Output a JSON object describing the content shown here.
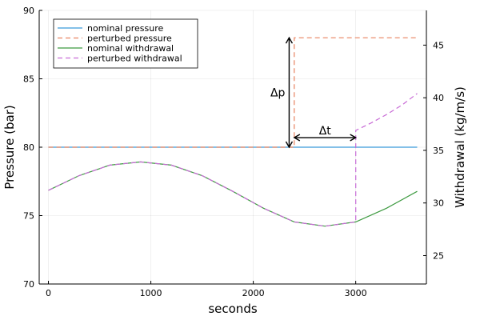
{
  "chart_data": {
    "type": "line",
    "title": "",
    "xlabel": "seconds",
    "ylabel_left": "Pressure (bar)",
    "ylabel_right": "Withdrawal (kg/m/s)",
    "xlim": [
      -90,
      3690
    ],
    "ylim_left": [
      70,
      90
    ],
    "ylim_right": [
      22.3,
      48.3
    ],
    "x_ticks": [
      0,
      1000,
      2000,
      3000
    ],
    "x_tick_labels": [
      "0",
      "1000",
      "2000",
      "3000"
    ],
    "y_left_ticks": [
      70,
      75,
      80,
      85,
      90
    ],
    "y_left_tick_labels": [
      "70",
      "75",
      "80",
      "85",
      "90"
    ],
    "y_right_ticks": [
      25,
      30,
      35,
      40,
      45
    ],
    "y_right_tick_labels": [
      "25",
      "30",
      "35",
      "40",
      "45"
    ],
    "grid": true,
    "legend_position": "top-left",
    "series": [
      {
        "name": "nominal pressure",
        "axis": "left",
        "color": "#3a9bd9",
        "dash": "solid",
        "x": [
          0,
          3600
        ],
        "y": [
          80,
          80
        ]
      },
      {
        "name": "perturbed pressure",
        "axis": "left",
        "color": "#e8825f",
        "dash": "dashed",
        "x": [
          0,
          2400,
          2400,
          3600
        ],
        "y": [
          80,
          80,
          88,
          88
        ]
      },
      {
        "name": "nominal withdrawal",
        "axis": "right",
        "color": "#3d9a40",
        "dash": "solid",
        "x": [
          0,
          300,
          600,
          900,
          1200,
          1500,
          1800,
          2100,
          2400,
          2700,
          3000,
          3300,
          3600
        ],
        "y": [
          31.2,
          32.6,
          33.6,
          33.9,
          33.6,
          32.6,
          31.1,
          29.5,
          28.2,
          27.8,
          28.2,
          29.5,
          31.1
        ]
      },
      {
        "name": "perturbed withdrawal",
        "axis": "right",
        "color": "#c86bd6",
        "dash": "dashed",
        "x": [
          0,
          300,
          600,
          900,
          1200,
          1500,
          1800,
          2100,
          2400,
          2700,
          3000,
          3000,
          3150,
          3300,
          3450,
          3600
        ],
        "y": [
          31.2,
          32.6,
          33.6,
          33.9,
          33.6,
          32.6,
          31.1,
          29.5,
          28.2,
          27.8,
          28.2,
          36.9,
          37.6,
          38.4,
          39.3,
          40.4
        ]
      }
    ],
    "annotations": [
      {
        "label": "Δp",
        "type": "vertical-arrow",
        "x": 2350,
        "y_from": 80,
        "y_to": 88
      },
      {
        "label": "Δt",
        "type": "horizontal-arrow",
        "x_from": 2400,
        "x_to": 3000,
        "y": 80.7
      }
    ]
  }
}
